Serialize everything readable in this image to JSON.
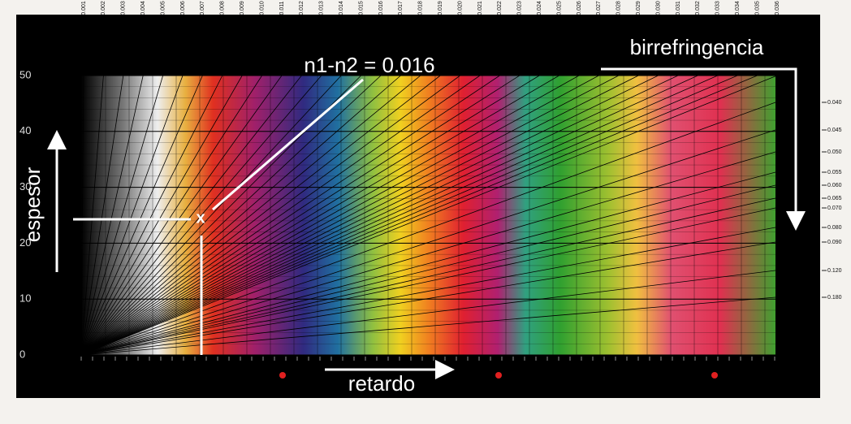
{
  "annotation": "n1-n2 = 0.016",
  "labels": {
    "birefringence": "birrefringencia",
    "thickness": "espesor",
    "retardation": "retardo"
  },
  "y_axis": {
    "ticks": [
      0,
      10,
      20,
      30,
      40,
      50
    ]
  },
  "top_scale": {
    "ticks": [
      "0.001",
      "0.002",
      "0.003",
      "0.004",
      "0.005",
      "0.006",
      "0.007",
      "0.008",
      "0.009",
      "0.010",
      "0.011",
      "0.012",
      "0.013",
      "0.014",
      "0.015",
      "0.016",
      "0.017",
      "0.018",
      "0.019",
      "0.020",
      "0.021",
      "0.022",
      "0.023",
      "0.024",
      "0.025",
      "0.026",
      "0.027",
      "0.028",
      "0.029",
      "0.030",
      "0.031",
      "0.032",
      "0.033",
      "0.034",
      "0.035",
      "0.036"
    ]
  },
  "right_scale": {
    "ticks": [
      "0.040",
      "0.045",
      "0.050",
      "0.055",
      "0.060",
      "0.065",
      "0.070",
      "0.080",
      "0.090",
      "0.120",
      "0.180"
    ]
  }
}
